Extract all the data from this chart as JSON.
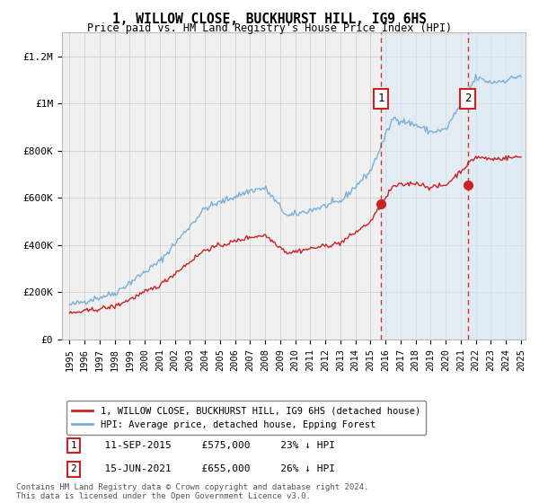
{
  "title": "1, WILLOW CLOSE, BUCKHURST HILL, IG9 6HS",
  "subtitle": "Price paid vs. HM Land Registry's House Price Index (HPI)",
  "ylim": [
    0,
    1300000
  ],
  "yticks": [
    0,
    200000,
    400000,
    600000,
    800000,
    1000000,
    1200000
  ],
  "ytick_labels": [
    "£0",
    "£200K",
    "£400K",
    "£600K",
    "£800K",
    "£1M",
    "£1.2M"
  ],
  "hpi_color": "#7ab0d8",
  "price_color": "#cc2222",
  "bg_color": "#ffffff",
  "plot_bg_color": "#f0f0f0",
  "shade_color": "#daeaf7",
  "grid_color": "#cccccc",
  "legend_label_price": "1, WILLOW CLOSE, BUCKHURST HILL, IG9 6HS (detached house)",
  "legend_label_hpi": "HPI: Average price, detached house, Epping Forest",
  "annotation1_label": "1",
  "annotation1_date": "11-SEP-2015",
  "annotation1_price": "£575,000",
  "annotation1_note": "23% ↓ HPI",
  "annotation2_label": "2",
  "annotation2_date": "15-JUN-2021",
  "annotation2_price": "£655,000",
  "annotation2_note": "26% ↓ HPI",
  "sale1_x": 2015.7,
  "sale1_y": 575000,
  "sale2_x": 2021.45,
  "sale2_y": 655000,
  "footnote": "Contains HM Land Registry data © Crown copyright and database right 2024.\nThis data is licensed under the Open Government Licence v3.0.",
  "xmin": 1995,
  "xmax": 2025,
  "xtick_years": [
    1995,
    1996,
    1997,
    1998,
    1999,
    2000,
    2001,
    2002,
    2003,
    2004,
    2005,
    2006,
    2007,
    2008,
    2009,
    2010,
    2011,
    2012,
    2013,
    2014,
    2015,
    2016,
    2017,
    2018,
    2019,
    2020,
    2021,
    2022,
    2023,
    2024,
    2025
  ]
}
